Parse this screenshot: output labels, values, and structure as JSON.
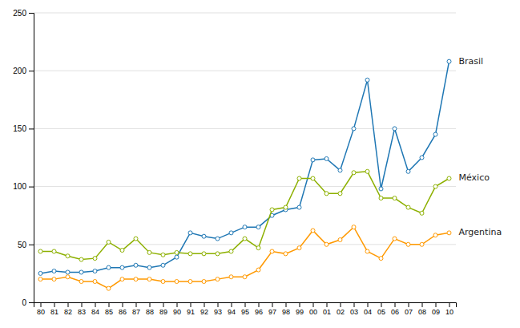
{
  "chart_data": {
    "type": "line",
    "categories": [
      "80",
      "81",
      "82",
      "83",
      "84",
      "85",
      "86",
      "87",
      "88",
      "89",
      "90",
      "91",
      "92",
      "93",
      "94",
      "95",
      "96",
      "97",
      "98",
      "99",
      "00",
      "01",
      "02",
      "03",
      "04",
      "05",
      "06",
      "07",
      "08",
      "09",
      "10"
    ],
    "series": [
      {
        "name": "Brasil",
        "color": "#1f77b4",
        "marker": "circle",
        "values": [
          25,
          27,
          26,
          26,
          27,
          30,
          30,
          32,
          30,
          32,
          39,
          60,
          57,
          55,
          60,
          65,
          65,
          75,
          80,
          82,
          123,
          124,
          114,
          150,
          192,
          98,
          150,
          113,
          125,
          145,
          208
        ]
      },
      {
        "name": "México",
        "color": "#8db000",
        "marker": "circle",
        "values": [
          44,
          44,
          40,
          37,
          38,
          52,
          45,
          55,
          43,
          41,
          43,
          42,
          42,
          42,
          44,
          55,
          47,
          80,
          82,
          107,
          107,
          94,
          94,
          112,
          113,
          90,
          90,
          82,
          77,
          100,
          107
        ]
      },
      {
        "name": "Argentina",
        "color": "#ff9900",
        "marker": "circle",
        "values": [
          20,
          20,
          22,
          18,
          18,
          12,
          20,
          20,
          20,
          18,
          18,
          18,
          18,
          20,
          22,
          22,
          28,
          44,
          42,
          47,
          62,
          50,
          54,
          65,
          44,
          38,
          55,
          50,
          50,
          58,
          60
        ]
      }
    ],
    "ylim": [
      0,
      250
    ],
    "yticks": [
      0,
      50,
      100,
      150,
      200,
      250
    ],
    "grid": true
  }
}
